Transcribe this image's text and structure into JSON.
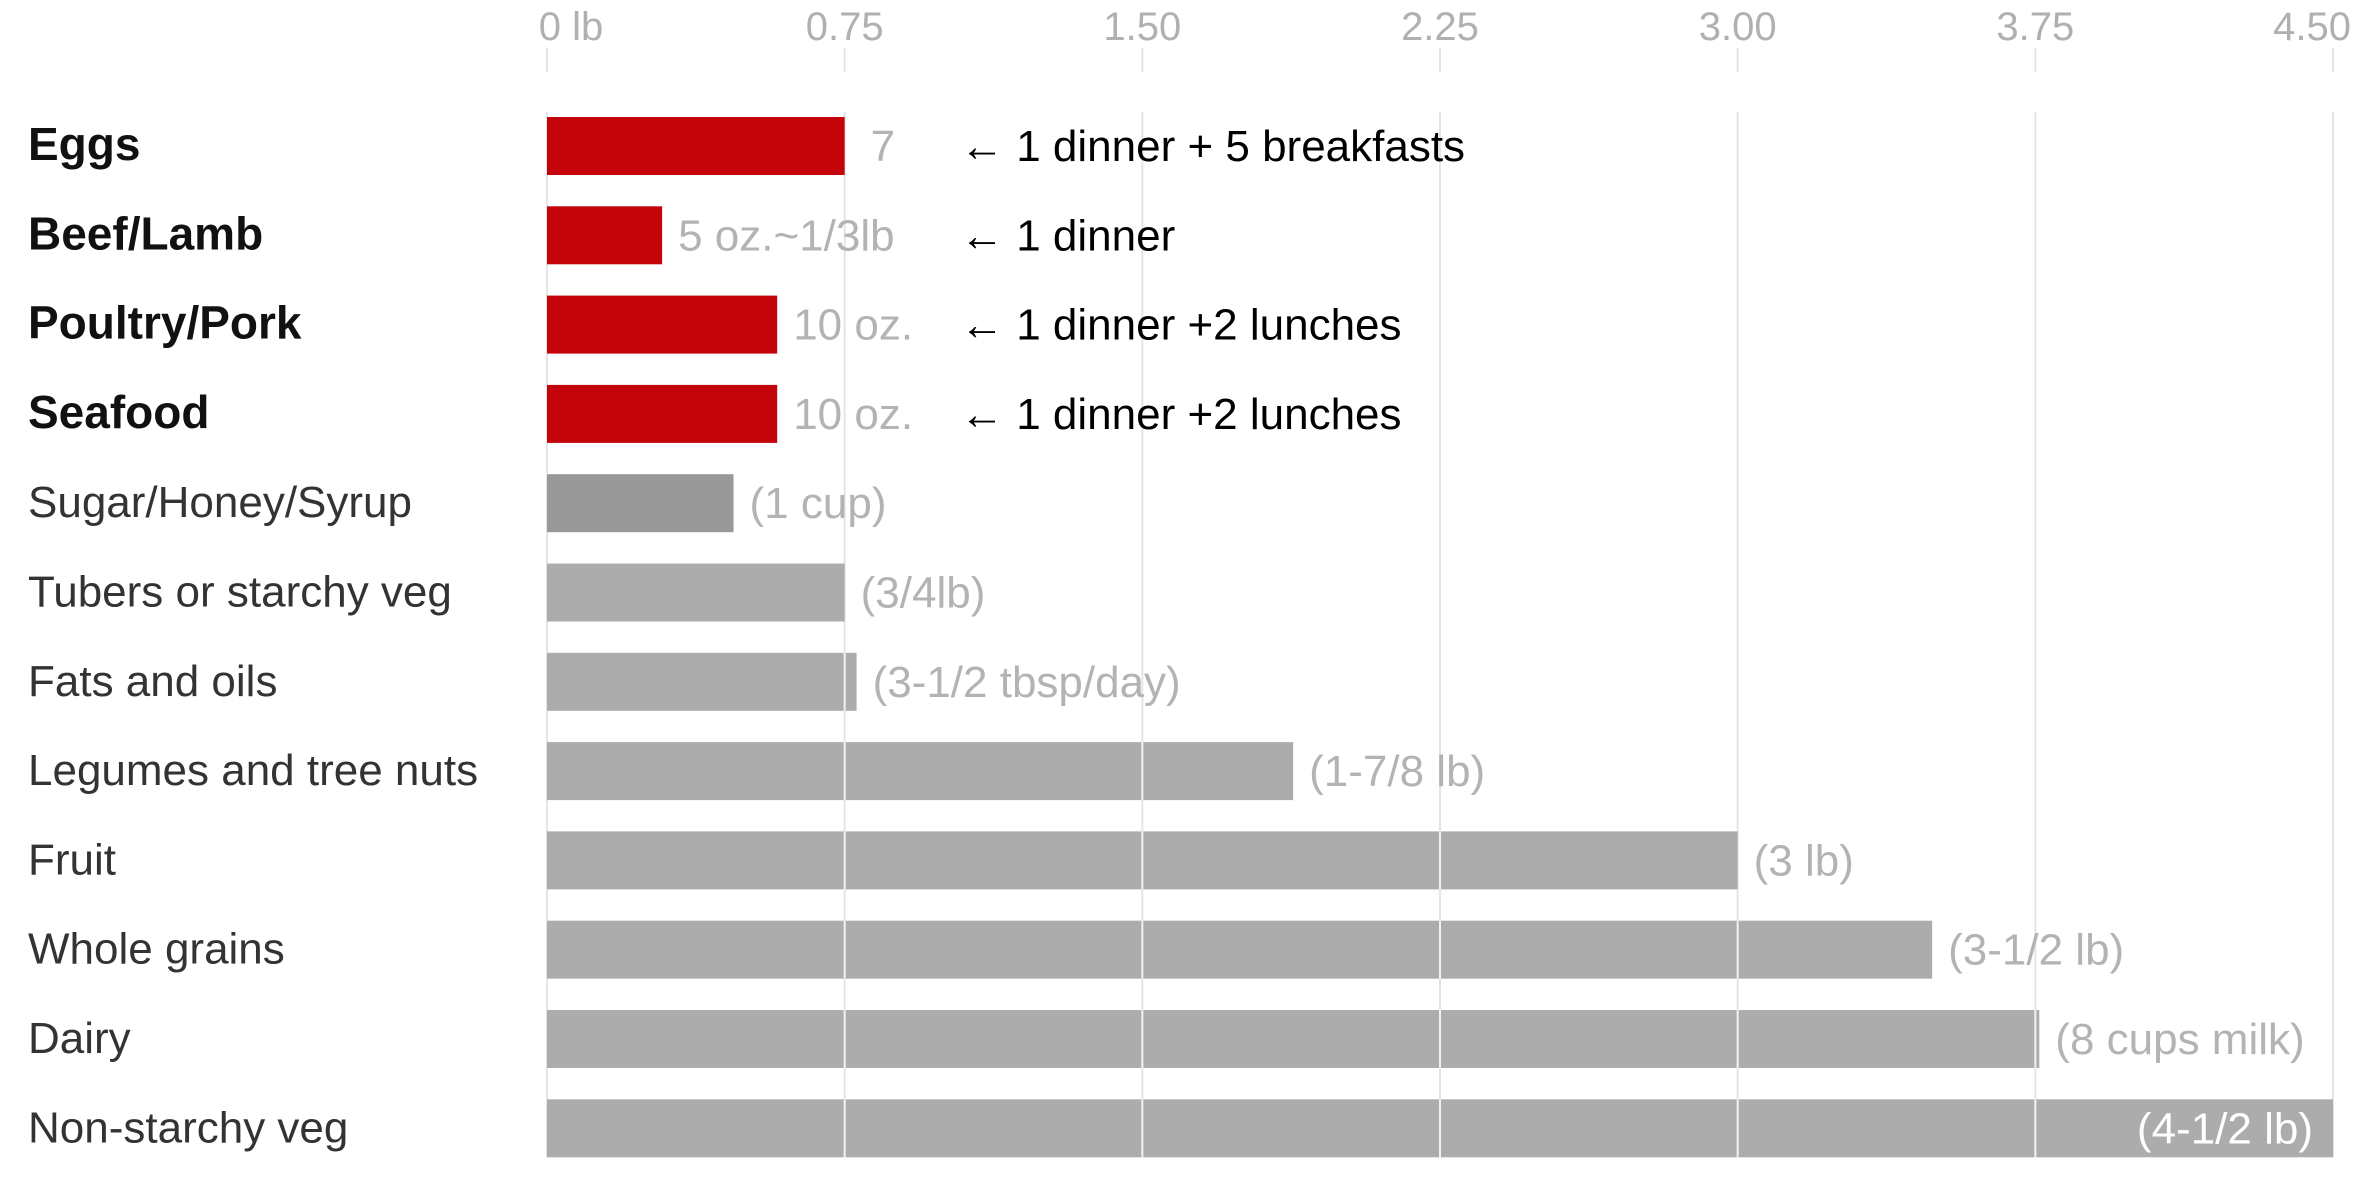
{
  "chart_data": {
    "type": "bar",
    "orientation": "horizontal",
    "xlim": [
      0,
      4.5
    ],
    "x_ticks": [
      "0 lb",
      "0.75",
      "1.50",
      "2.25",
      "3.00",
      "3.75",
      "4.50"
    ],
    "x_tick_values": [
      0,
      0.75,
      1.5,
      2.25,
      3.0,
      3.75,
      4.5
    ],
    "grid": true,
    "colors": {
      "highlight": "#c4040b",
      "sugar": "#999999",
      "default": "#acacac",
      "gridline": "#e5e5e5",
      "axis_text": "#b0b0b0",
      "value_label": "#b3b3b3",
      "category_text": "#1a1a1a",
      "annotation": "#000000"
    },
    "categories": [
      "Eggs",
      "Beef/Lamb",
      "Poultry/Pork",
      "Seafood",
      "Sugar/Honey/Syrup",
      "Tubers or starchy veg",
      "Fats and oils",
      "Legumes and tree nuts",
      "Fruit",
      "Whole grains",
      "Dairy",
      "Non-starchy veg"
    ],
    "bars": [
      {
        "category": "Eggs",
        "value": 0.75,
        "label": "7",
        "annotation": "← 1 dinner + 5 breakfasts",
        "bold": true,
        "color": "highlight"
      },
      {
        "category": "Beef/Lamb",
        "value": 0.29,
        "label": "5 oz.~1/3lb",
        "annotation": "← 1 dinner",
        "bold": true,
        "color": "highlight"
      },
      {
        "category": "Poultry/Pork",
        "value": 0.58,
        "label": "10 oz.",
        "annotation": "← 1 dinner +2 lunches",
        "bold": true,
        "color": "highlight"
      },
      {
        "category": "Seafood",
        "value": 0.58,
        "label": "10 oz.",
        "annotation": "← 1 dinner +2 lunches",
        "bold": true,
        "color": "highlight"
      },
      {
        "category": "Sugar/Honey/Syrup",
        "value": 0.47,
        "label": "(1 cup)",
        "annotation": "",
        "bold": false,
        "color": "sugar"
      },
      {
        "category": "Tubers or starchy veg",
        "value": 0.75,
        "label": "(3/4lb)",
        "annotation": "",
        "bold": false,
        "color": "default"
      },
      {
        "category": "Fats and oils",
        "value": 0.78,
        "label": "(3-1/2 tbsp/day)",
        "annotation": "",
        "bold": false,
        "color": "default"
      },
      {
        "category": "Legumes and tree nuts",
        "value": 1.88,
        "label": "(1-7/8 lb)",
        "annotation": "",
        "bold": false,
        "color": "default"
      },
      {
        "category": "Fruit",
        "value": 3.0,
        "label": "(3 lb)",
        "annotation": "",
        "bold": false,
        "color": "default"
      },
      {
        "category": "Whole grains",
        "value": 3.49,
        "label": "(3-1/2 lb)",
        "annotation": "",
        "bold": false,
        "color": "default"
      },
      {
        "category": "Dairy",
        "value": 3.76,
        "label": "(8 cups milk)",
        "annotation": "",
        "bold": false,
        "color": "default"
      },
      {
        "category": "Non-starchy veg",
        "value": 4.5,
        "label": "(4-1/2 lb)",
        "annotation": "",
        "bold": false,
        "color": "default",
        "label_inside": true
      }
    ]
  }
}
